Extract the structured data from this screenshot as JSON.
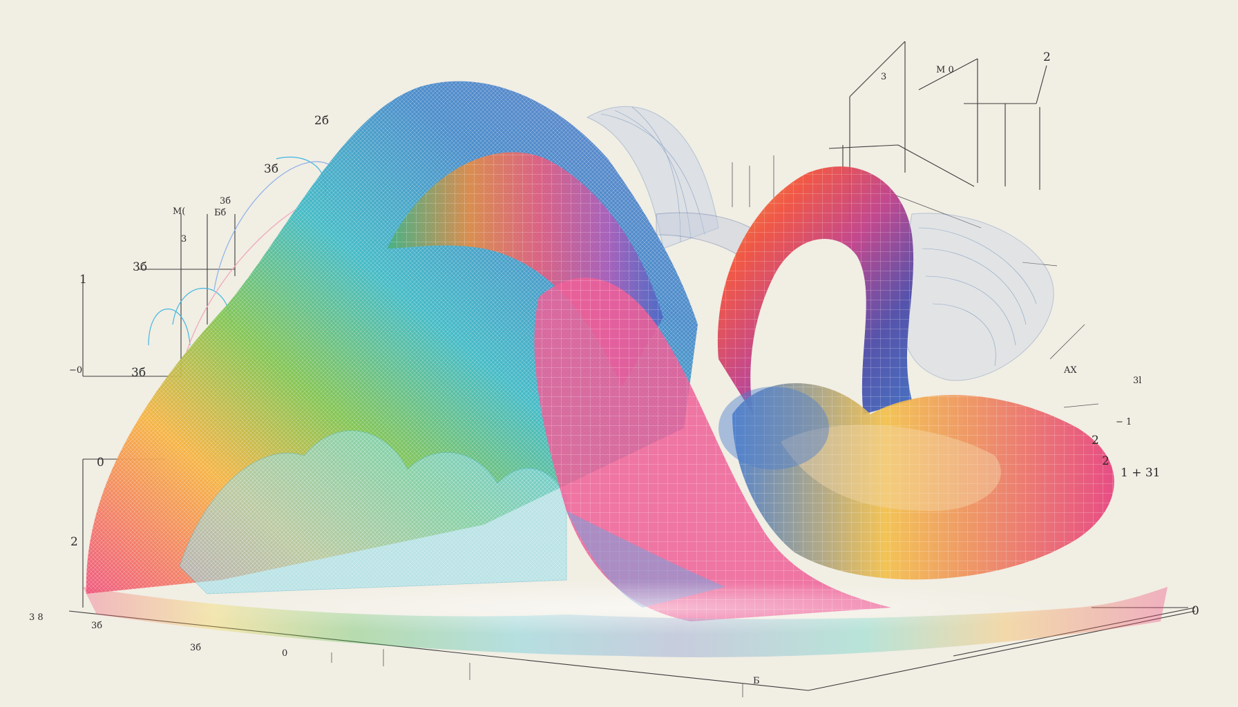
{
  "colors": {
    "background": "#f1eee4",
    "axis": "#3a3a3a",
    "rainbow": [
      "#f04f7a",
      "#f6a13a",
      "#f3e04a",
      "#4bb84a",
      "#36b6c9",
      "#3b72c4",
      "#6a4fb4",
      "#e04a8c"
    ]
  },
  "labels": {
    "left_top": "1",
    "left_y": "3",
    "left_mid1": "3б",
    "left_x": "0",
    "left_x2": "3б",
    "left_mid2": "−0",
    "left_bottom": "2",
    "top_a": "2б",
    "top_b": "3б",
    "top_c": "3б",
    "top_d": "M(",
    "top_e": "Бб",
    "right_top": "2",
    "right_a": "M 0",
    "right_b": "3",
    "right_c": "1 + 31",
    "right_d": "2",
    "right_e": "AX",
    "right_f": "3l",
    "right_g": "− 1",
    "right_h": "2",
    "bottom_a": "3 8",
    "bottom_b": "3б",
    "bottom_c": "3б",
    "bottom_d": "0",
    "bottom_e": "Б",
    "bottom_r": "0"
  }
}
